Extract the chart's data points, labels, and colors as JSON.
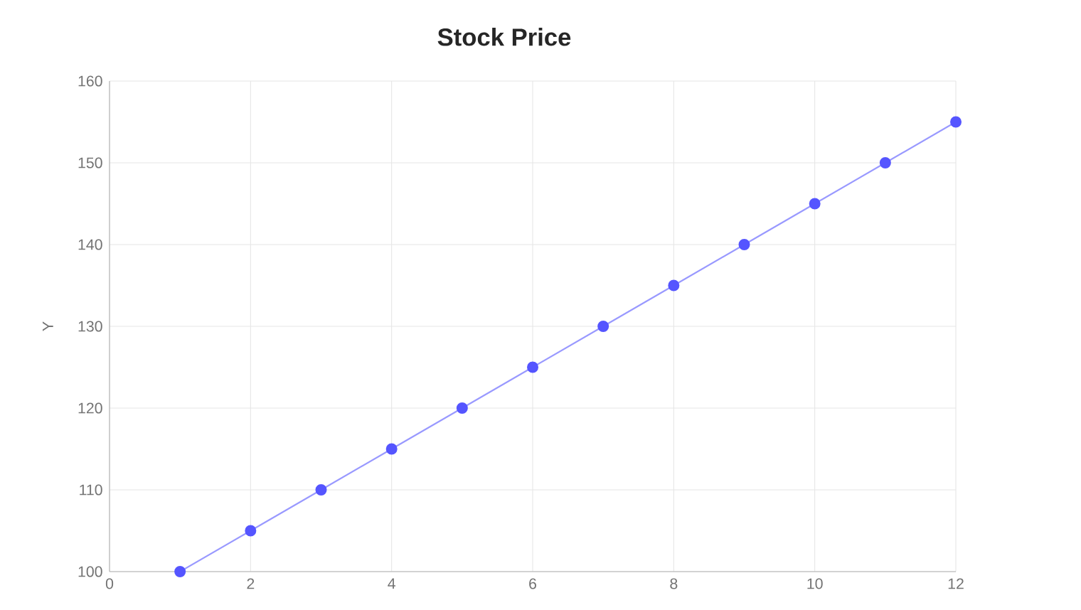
{
  "chart_data": {
    "type": "line",
    "title": "Stock Price",
    "ylabel": "Y",
    "x": [
      1,
      2,
      3,
      4,
      5,
      6,
      7,
      8,
      9,
      10,
      11,
      12
    ],
    "series": [
      {
        "color": "#5555ff",
        "values": [
          100,
          105,
          110,
          115,
          120,
          125,
          130,
          135,
          140,
          145,
          150,
          155
        ]
      }
    ],
    "xlim": [
      0,
      12
    ],
    "xticks": [
      0,
      2,
      4,
      6,
      8,
      10,
      12
    ],
    "ylim": [
      100,
      160
    ],
    "yticks": [
      100,
      110,
      120,
      130,
      140,
      150,
      160
    ],
    "grid": true,
    "marker": "circle",
    "line_style": "solid"
  }
}
